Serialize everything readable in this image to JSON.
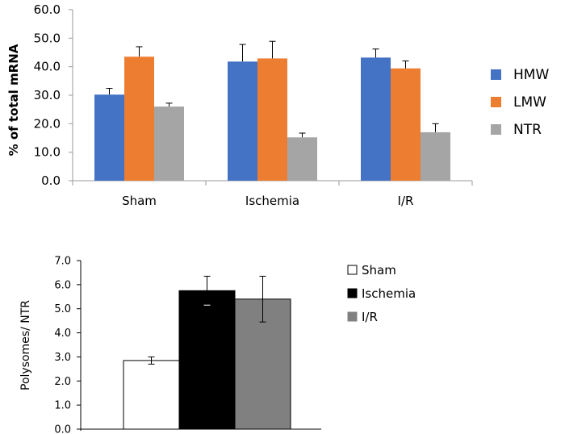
{
  "chart_data": [
    {
      "type": "bar",
      "title": "",
      "xlabel": "",
      "ylabel": "% of total mRNA",
      "ylim": [
        0,
        60
      ],
      "yticks": [
        "0.0",
        "10.0",
        "20.0",
        "30.0",
        "40.0",
        "50.0",
        "60.0"
      ],
      "categories": [
        "Sham",
        "Ischemia",
        "I/R"
      ],
      "series": [
        {
          "name": "HMW",
          "color": "#4472C4",
          "values": [
            30.2,
            41.8,
            43.2
          ],
          "errors": [
            2.2,
            6.0,
            3.0
          ]
        },
        {
          "name": "LMW",
          "color": "#ED7D31",
          "values": [
            43.5,
            42.9,
            39.4
          ],
          "errors": [
            3.5,
            6.0,
            2.6
          ]
        },
        {
          "name": "NTR",
          "color": "#A5A5A5",
          "values": [
            26.0,
            15.2,
            17.0
          ],
          "errors": [
            1.2,
            1.5,
            3.0
          ]
        }
      ],
      "grid": false,
      "legend": "right"
    },
    {
      "type": "bar",
      "title": "",
      "xlabel": "",
      "ylabel": "Polysomes/ NTR",
      "ylim": [
        0,
        7
      ],
      "yticks": [
        "0.0",
        "1.0",
        "2.0",
        "3.0",
        "4.0",
        "5.0",
        "6.0",
        "7.0"
      ],
      "categories": [
        "Sham",
        "Ischemia",
        "I/R"
      ],
      "values": [
        2.85,
        5.75,
        5.4
      ],
      "errors": [
        0.15,
        0.6,
        0.95
      ],
      "colors": [
        "#ffffff",
        "#000000",
        "#808080"
      ],
      "legend_labels": [
        "Sham",
        "Ischemia",
        "I/R"
      ],
      "grid": false,
      "legend": "right"
    }
  ]
}
